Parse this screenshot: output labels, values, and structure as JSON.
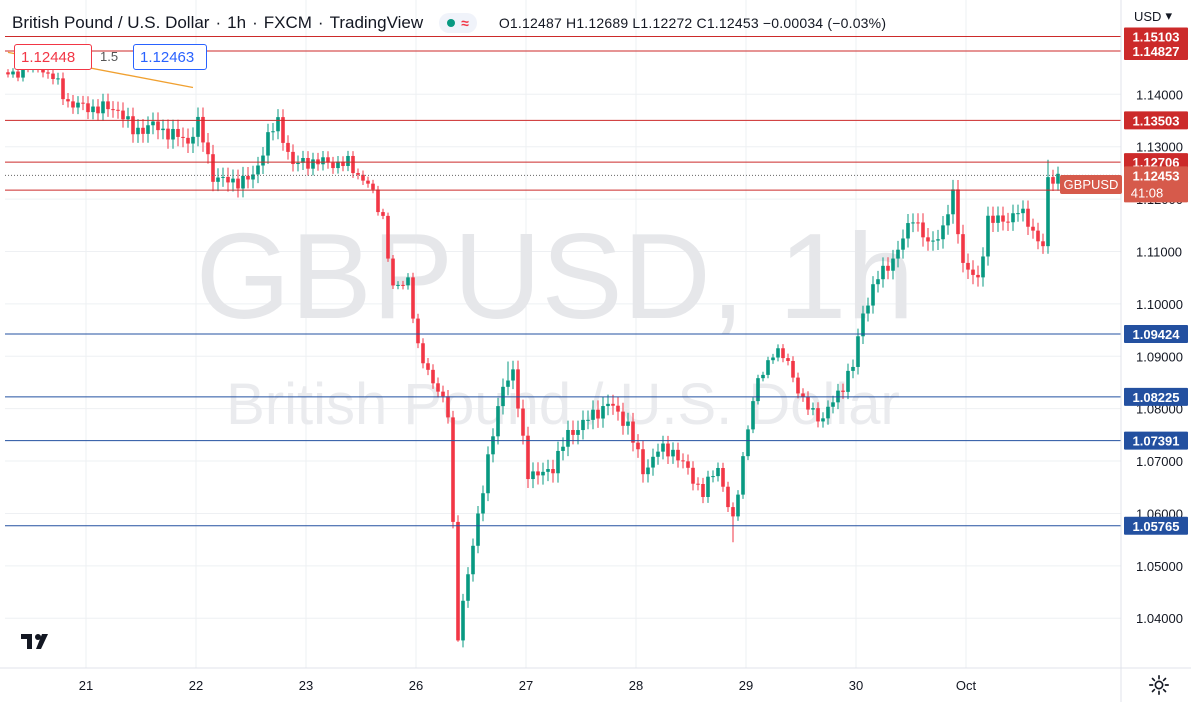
{
  "header": {
    "symbol_name": "British Pound / U.S. Dollar",
    "sep1": "·",
    "interval": "1h",
    "sep2": "·",
    "source": "FXCM",
    "sep3": "·",
    "platform": "TradingView",
    "wave_glyph": "≈",
    "ohlc": "O1.12487 H1.12689 L1.12272 C1.12453 −0.00034 (−0.03%)"
  },
  "trade_panel": {
    "sell_price": "1.12448",
    "spread": "1.5",
    "buy_price": "1.12463"
  },
  "currency_selector": {
    "label": "USD",
    "arrow": "▾"
  },
  "watermark": {
    "symbol": "GBPUSD, 1h",
    "name": "British Pound / U.S. Dollar"
  },
  "colors": {
    "up": "#089981",
    "down": "#f23645",
    "resistance": "#cc2a2a",
    "support": "#2350a0",
    "trendline": "#f0a030",
    "last_price": "#d65a4b",
    "grid": "#eef0f3",
    "text": "#131722"
  },
  "chart_data": {
    "type": "candlestick",
    "symbol": "GBPUSD",
    "interval": "1h",
    "y_axis": {
      "min": 1.0305,
      "max": 1.158,
      "ticks": [
        "1.14000",
        "1.13000",
        "1.12000",
        "1.11000",
        "1.10000",
        "1.09000",
        "1.08000",
        "1.07000",
        "1.06000",
        "1.05000",
        "1.04000"
      ]
    },
    "x_axis": {
      "labels": [
        "21",
        "22",
        "23",
        "26",
        "27",
        "28",
        "29",
        "30",
        "Oct"
      ]
    },
    "last_price": {
      "value": 1.12453,
      "label": "1.12453",
      "countdown": "41:08",
      "symbol_tag": "GBPUSD"
    },
    "resistance_levels": [
      {
        "value": 1.15103,
        "label": "1.15103"
      },
      {
        "value": 1.14827,
        "label": "1.14827"
      },
      {
        "value": 1.13503,
        "label": "1.13503"
      },
      {
        "value": 1.12706,
        "label": "1.12706"
      },
      {
        "value": 1.1217,
        "label": "1.12170"
      }
    ],
    "support_levels": [
      {
        "value": 1.09424,
        "label": "1.09424"
      },
      {
        "value": 1.08225,
        "label": "1.08225"
      },
      {
        "value": 1.07391,
        "label": "1.07391"
      },
      {
        "value": 1.05765,
        "label": "1.05765"
      }
    ],
    "trendline": {
      "from": [
        0,
        1.148
      ],
      "to": [
        37,
        1.1413
      ]
    },
    "bars_per_day": 22,
    "ohlc_keyframes": [
      [
        0,
        1.1432
      ],
      [
        5,
        1.1462
      ],
      [
        9,
        1.1432
      ],
      [
        12,
        1.1385
      ],
      [
        15,
        1.1375
      ],
      [
        22,
        1.1372
      ],
      [
        25,
        1.133
      ],
      [
        29,
        1.134
      ],
      [
        36,
        1.131
      ],
      [
        38,
        1.1345
      ],
      [
        41,
        1.1245
      ],
      [
        44,
        1.1232
      ],
      [
        49,
        1.124
      ],
      [
        52,
        1.132
      ],
      [
        54,
        1.1345
      ],
      [
        57,
        1.1265
      ],
      [
        60,
        1.1272
      ],
      [
        66,
        1.1268
      ],
      [
        68,
        1.1268
      ],
      [
        72,
        1.1228
      ],
      [
        75,
        1.1165
      ],
      [
        77,
        1.1025
      ],
      [
        80,
        1.105
      ],
      [
        82,
        1.091
      ],
      [
        85,
        1.0855
      ],
      [
        88,
        1.079
      ],
      [
        90,
        1.037
      ],
      [
        92,
        1.048
      ],
      [
        94,
        1.06
      ],
      [
        96,
        1.07
      ],
      [
        99,
        1.085
      ],
      [
        101,
        1.0865
      ],
      [
        104,
        1.068
      ],
      [
        106,
        1.067
      ],
      [
        109,
        1.069
      ],
      [
        112,
        1.075
      ],
      [
        116,
        1.078
      ],
      [
        120,
        1.081
      ],
      [
        124,
        1.077
      ],
      [
        127,
        1.068
      ],
      [
        130,
        1.072
      ],
      [
        133,
        1.072
      ],
      [
        136,
        1.068
      ],
      [
        139,
        1.064
      ],
      [
        142,
        1.069
      ],
      [
        145,
        1.058
      ],
      [
        148,
        1.077
      ],
      [
        150,
        1.085
      ],
      [
        153,
        1.091
      ],
      [
        156,
        1.089
      ],
      [
        159,
        1.081
      ],
      [
        163,
        1.078
      ],
      [
        166,
        1.083
      ],
      [
        169,
        1.088
      ],
      [
        171,
        1.0985
      ],
      [
        174,
        1.105
      ],
      [
        178,
        1.11
      ],
      [
        181,
        1.117
      ],
      [
        184,
        1.111
      ],
      [
        187,
        1.1145
      ],
      [
        189,
        1.1205
      ],
      [
        191,
        1.108
      ],
      [
        194,
        1.104
      ],
      [
        196,
        1.1165
      ],
      [
        199,
        1.1155
      ],
      [
        202,
        1.118
      ],
      [
        205,
        1.114
      ],
      [
        207,
        1.111
      ],
      [
        208,
        1.123
      ],
      [
        210,
        1.1245
      ]
    ]
  }
}
